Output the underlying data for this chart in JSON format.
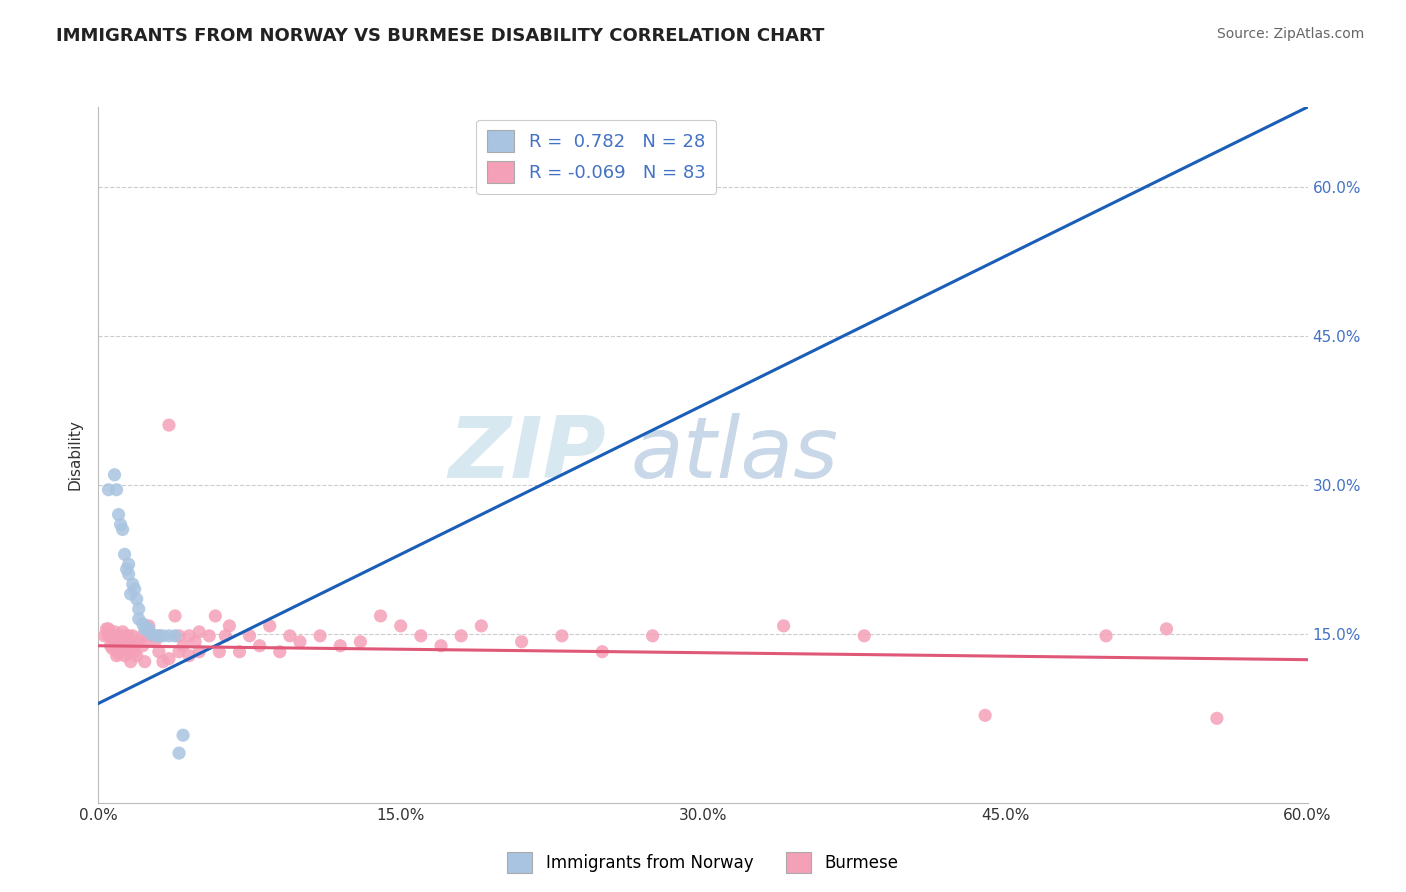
{
  "title": "IMMIGRANTS FROM NORWAY VS BURMESE DISABILITY CORRELATION CHART",
  "source_text": "Source: ZipAtlas.com",
  "ylabel": "Disability",
  "xlim": [
    0.0,
    0.6
  ],
  "ylim": [
    -0.02,
    0.68
  ],
  "x_tick_labels": [
    "0.0%",
    "15.0%",
    "30.0%",
    "45.0%",
    "60.0%"
  ],
  "x_tick_vals": [
    0.0,
    0.15,
    0.3,
    0.45,
    0.6
  ],
  "y_tick_labels": [
    "15.0%",
    "30.0%",
    "45.0%",
    "60.0%"
  ],
  "y_tick_vals": [
    0.15,
    0.3,
    0.45,
    0.6
  ],
  "norway_R": 0.782,
  "norway_N": 28,
  "burmese_R": -0.069,
  "burmese_N": 83,
  "norway_color": "#a8c4e0",
  "burmese_color": "#f4a0b8",
  "norway_line_color": "#1a5eb8",
  "burmese_line_color": "#e05878",
  "norway_line_x0": 0.0,
  "norway_line_y0": 0.08,
  "norway_line_x1": 0.6,
  "norway_line_y1": 0.68,
  "burmese_line_x0": 0.0,
  "burmese_line_y0": 0.138,
  "burmese_line_x1": 0.6,
  "burmese_line_y1": 0.124,
  "norway_scatter": [
    [
      0.005,
      0.295
    ],
    [
      0.008,
      0.31
    ],
    [
      0.009,
      0.295
    ],
    [
      0.01,
      0.27
    ],
    [
      0.011,
      0.26
    ],
    [
      0.012,
      0.255
    ],
    [
      0.013,
      0.23
    ],
    [
      0.014,
      0.215
    ],
    [
      0.015,
      0.22
    ],
    [
      0.015,
      0.21
    ],
    [
      0.016,
      0.19
    ],
    [
      0.017,
      0.2
    ],
    [
      0.018,
      0.195
    ],
    [
      0.019,
      0.185
    ],
    [
      0.02,
      0.175
    ],
    [
      0.02,
      0.165
    ],
    [
      0.022,
      0.16
    ],
    [
      0.023,
      0.155
    ],
    [
      0.024,
      0.155
    ],
    [
      0.025,
      0.155
    ],
    [
      0.026,
      0.15
    ],
    [
      0.028,
      0.148
    ],
    [
      0.03,
      0.148
    ],
    [
      0.032,
      0.148
    ],
    [
      0.035,
      0.148
    ],
    [
      0.038,
      0.148
    ],
    [
      0.04,
      0.03
    ],
    [
      0.042,
      0.048
    ]
  ],
  "burmese_scatter": [
    [
      0.003,
      0.148
    ],
    [
      0.004,
      0.155
    ],
    [
      0.005,
      0.148
    ],
    [
      0.005,
      0.155
    ],
    [
      0.006,
      0.148
    ],
    [
      0.006,
      0.138
    ],
    [
      0.007,
      0.135
    ],
    [
      0.007,
      0.148
    ],
    [
      0.008,
      0.142
    ],
    [
      0.008,
      0.152
    ],
    [
      0.009,
      0.135
    ],
    [
      0.009,
      0.128
    ],
    [
      0.01,
      0.148
    ],
    [
      0.01,
      0.135
    ],
    [
      0.01,
      0.13
    ],
    [
      0.011,
      0.148
    ],
    [
      0.011,
      0.138
    ],
    [
      0.012,
      0.142
    ],
    [
      0.012,
      0.152
    ],
    [
      0.013,
      0.138
    ],
    [
      0.013,
      0.128
    ],
    [
      0.014,
      0.148
    ],
    [
      0.014,
      0.138
    ],
    [
      0.015,
      0.132
    ],
    [
      0.015,
      0.148
    ],
    [
      0.016,
      0.138
    ],
    [
      0.016,
      0.122
    ],
    [
      0.017,
      0.138
    ],
    [
      0.017,
      0.148
    ],
    [
      0.018,
      0.132
    ],
    [
      0.019,
      0.128
    ],
    [
      0.02,
      0.142
    ],
    [
      0.022,
      0.148
    ],
    [
      0.022,
      0.138
    ],
    [
      0.023,
      0.122
    ],
    [
      0.025,
      0.148
    ],
    [
      0.025,
      0.158
    ],
    [
      0.028,
      0.142
    ],
    [
      0.03,
      0.132
    ],
    [
      0.03,
      0.148
    ],
    [
      0.032,
      0.122
    ],
    [
      0.035,
      0.125
    ],
    [
      0.035,
      0.36
    ],
    [
      0.038,
      0.168
    ],
    [
      0.04,
      0.132
    ],
    [
      0.04,
      0.148
    ],
    [
      0.042,
      0.138
    ],
    [
      0.045,
      0.128
    ],
    [
      0.045,
      0.148
    ],
    [
      0.048,
      0.142
    ],
    [
      0.05,
      0.132
    ],
    [
      0.05,
      0.152
    ],
    [
      0.055,
      0.148
    ],
    [
      0.058,
      0.168
    ],
    [
      0.06,
      0.132
    ],
    [
      0.063,
      0.148
    ],
    [
      0.065,
      0.158
    ],
    [
      0.07,
      0.132
    ],
    [
      0.075,
      0.148
    ],
    [
      0.08,
      0.138
    ],
    [
      0.085,
      0.158
    ],
    [
      0.09,
      0.132
    ],
    [
      0.095,
      0.148
    ],
    [
      0.1,
      0.142
    ],
    [
      0.11,
      0.148
    ],
    [
      0.12,
      0.138
    ],
    [
      0.13,
      0.142
    ],
    [
      0.14,
      0.168
    ],
    [
      0.15,
      0.158
    ],
    [
      0.16,
      0.148
    ],
    [
      0.17,
      0.138
    ],
    [
      0.18,
      0.148
    ],
    [
      0.19,
      0.158
    ],
    [
      0.21,
      0.142
    ],
    [
      0.23,
      0.148
    ],
    [
      0.25,
      0.132
    ],
    [
      0.275,
      0.148
    ],
    [
      0.34,
      0.158
    ],
    [
      0.38,
      0.148
    ],
    [
      0.44,
      0.068
    ],
    [
      0.5,
      0.148
    ],
    [
      0.53,
      0.155
    ],
    [
      0.555,
      0.065
    ]
  ],
  "watermark_zip": "ZIP",
  "watermark_atlas": "atlas",
  "background_color": "#ffffff",
  "grid_color": "#cccccc",
  "marker_size": 90
}
